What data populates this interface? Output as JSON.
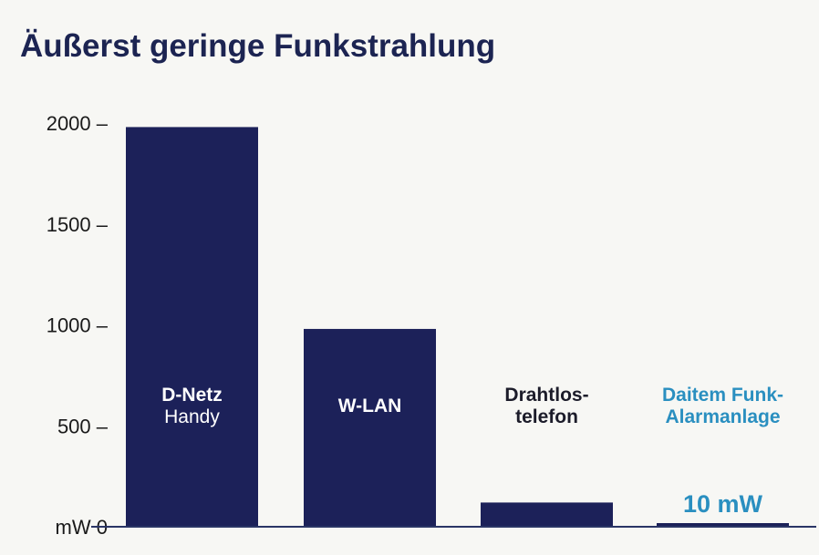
{
  "chart_data": {
    "type": "bar",
    "title": "Äußerst geringe Funkstrahlung",
    "categories": [
      [
        "D-Netz",
        "Handy"
      ],
      [
        "W-LAN"
      ],
      [
        "Drahtlos-",
        "telefon"
      ],
      [
        "Daitem Funk-",
        "Alarmanlage"
      ]
    ],
    "values": [
      1980,
      980,
      120,
      10
    ],
    "y_ticks": [
      {
        "value": 2000,
        "label": "2000 –"
      },
      {
        "value": 1500,
        "label": "1500 –"
      },
      {
        "value": 1000,
        "label": "1000 –"
      },
      {
        "value": 500,
        "label": "500 –"
      },
      {
        "value": 0,
        "label": "mW 0"
      }
    ],
    "ylim": [
      0,
      2000
    ],
    "annotations": [
      {
        "category_index": 3,
        "text": "10 mW"
      }
    ],
    "colors": {
      "bar": "#1c2159",
      "accent": "#2a8fc0",
      "title": "#1c2452"
    },
    "grid": false,
    "legend": "none"
  }
}
